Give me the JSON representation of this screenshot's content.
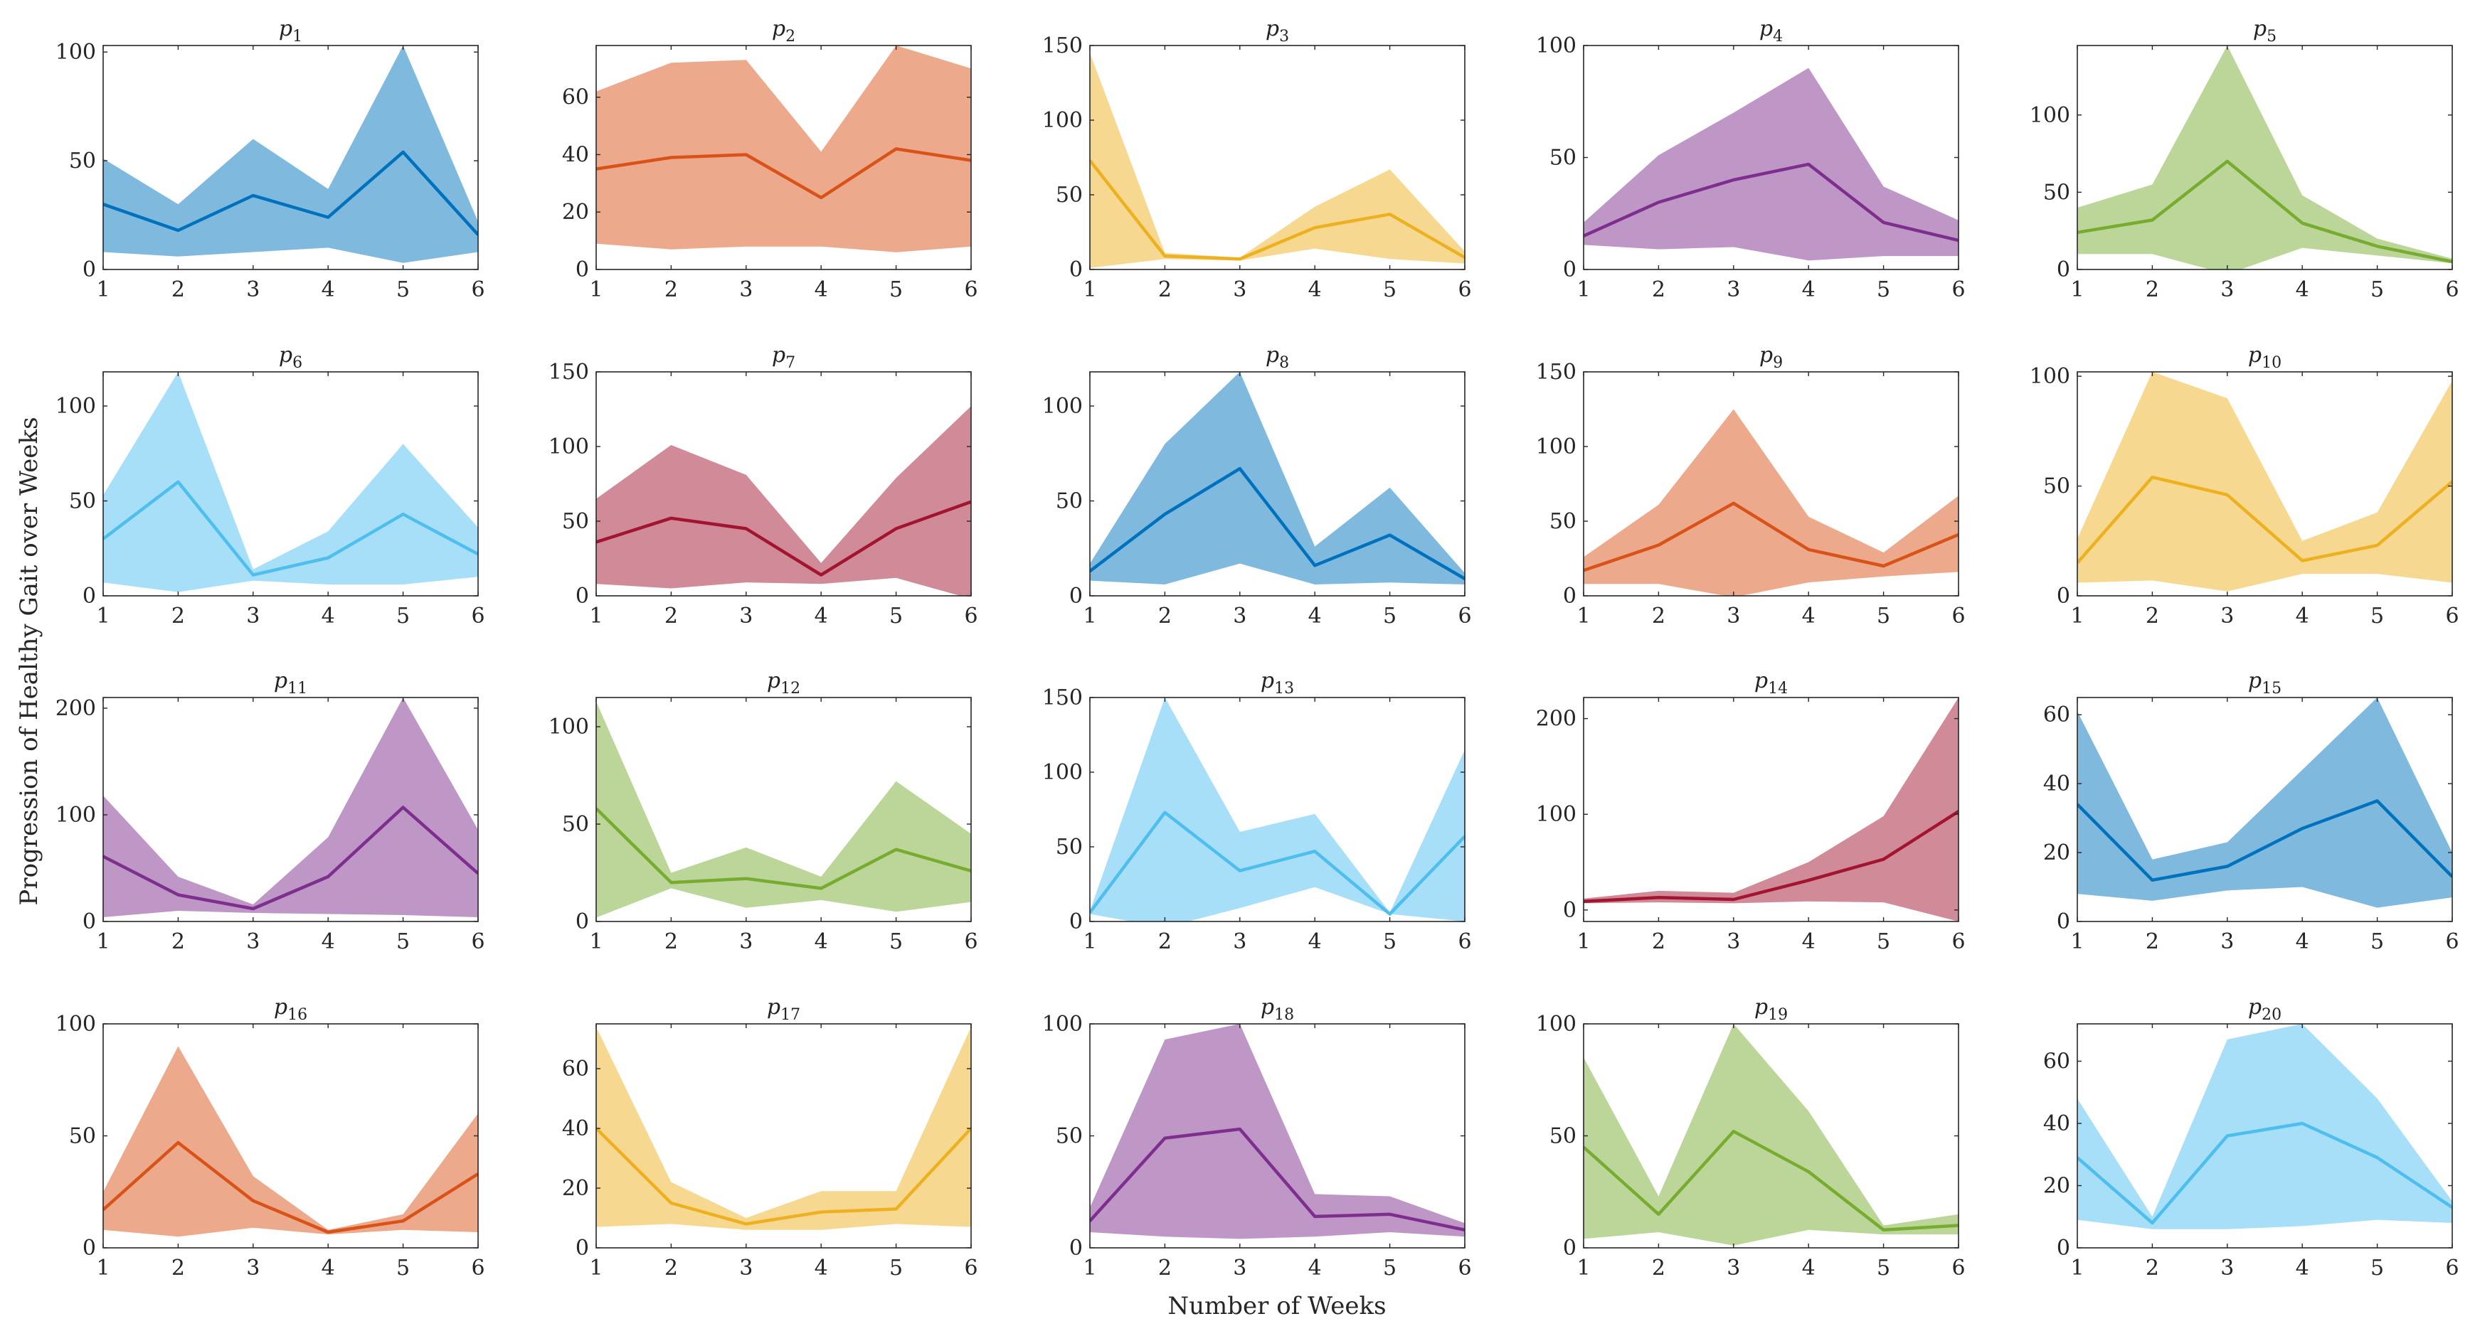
{
  "figure": {
    "ylabel": "Progression of Healthy Gait over Weeks",
    "xlabel": "Number of Weeks"
  },
  "chart_data": [
    {
      "type": "area",
      "title": "p1",
      "title_base": "p",
      "title_sub": "1",
      "color": "#0072BD",
      "x": [
        1,
        2,
        3,
        4,
        5,
        6
      ],
      "ylim": [
        0,
        103
      ],
      "yticks": [
        0,
        50,
        100
      ],
      "xticks": [
        1,
        2,
        3,
        4,
        5,
        6
      ],
      "upper": [
        51,
        30,
        60,
        37,
        103,
        22
      ],
      "lower": [
        8,
        6,
        8,
        10,
        3,
        8
      ],
      "mean": [
        30,
        18,
        34,
        24,
        54,
        16
      ]
    },
    {
      "type": "area",
      "title": "p2",
      "title_base": "p",
      "title_sub": "2",
      "color": "#D95319",
      "x": [
        1,
        2,
        3,
        4,
        5,
        6
      ],
      "ylim": [
        0,
        78
      ],
      "yticks": [
        0,
        20,
        40,
        60
      ],
      "xticks": [
        1,
        2,
        3,
        4,
        5,
        6
      ],
      "upper": [
        62,
        72,
        73,
        41,
        78,
        70
      ],
      "lower": [
        9,
        7,
        8,
        8,
        6,
        8
      ],
      "mean": [
        35,
        39,
        40,
        25,
        42,
        38
      ]
    },
    {
      "type": "area",
      "title": "p3",
      "title_base": "p",
      "title_sub": "3",
      "color": "#EDB120",
      "x": [
        1,
        2,
        3,
        4,
        5,
        6
      ],
      "ylim": [
        0,
        150
      ],
      "yticks": [
        0,
        50,
        100,
        150
      ],
      "xticks": [
        1,
        2,
        3,
        4,
        5,
        6
      ],
      "upper": [
        145,
        11,
        8,
        42,
        67,
        12
      ],
      "lower": [
        1,
        7,
        6,
        14,
        7,
        4
      ],
      "mean": [
        73,
        9,
        7,
        28,
        37,
        8
      ]
    },
    {
      "type": "area",
      "title": "p4",
      "title_base": "p",
      "title_sub": "4",
      "color": "#7E2F8E",
      "x": [
        1,
        2,
        3,
        4,
        5,
        6
      ],
      "ylim": [
        0,
        100
      ],
      "yticks": [
        0,
        50,
        100
      ],
      "xticks": [
        1,
        2,
        3,
        4,
        5,
        6
      ],
      "upper": [
        21,
        51,
        70,
        90,
        37,
        22
      ],
      "lower": [
        11,
        9,
        10,
        4,
        6,
        6
      ],
      "mean": [
        15,
        30,
        40,
        47,
        21,
        13
      ]
    },
    {
      "type": "area",
      "title": "p5",
      "title_base": "p",
      "title_sub": "5",
      "color": "#77AC30",
      "x": [
        1,
        2,
        3,
        4,
        5,
        6
      ],
      "ylim": [
        0,
        145
      ],
      "yticks": [
        0,
        50,
        100
      ],
      "xticks": [
        1,
        2,
        3,
        4,
        5,
        6
      ],
      "upper": [
        40,
        55,
        145,
        48,
        20,
        7
      ],
      "lower": [
        10,
        10,
        -3,
        14,
        9,
        4
      ],
      "mean": [
        24,
        32,
        70,
        30,
        15,
        5
      ]
    },
    {
      "type": "area",
      "title": "p6",
      "title_base": "p",
      "title_sub": "6",
      "color": "#4DBEEE",
      "x": [
        1,
        2,
        3,
        4,
        5,
        6
      ],
      "ylim": [
        0,
        118
      ],
      "yticks": [
        0,
        50,
        100
      ],
      "xticks": [
        1,
        2,
        3,
        4,
        5,
        6
      ],
      "upper": [
        53,
        118,
        14,
        34,
        80,
        36
      ],
      "lower": [
        7,
        2,
        8,
        6,
        6,
        10
      ],
      "mean": [
        30,
        60,
        11,
        20,
        43,
        22
      ]
    },
    {
      "type": "area",
      "title": "p7",
      "title_base": "p",
      "title_sub": "7",
      "color": "#A2142F",
      "x": [
        1,
        2,
        3,
        4,
        5,
        6
      ],
      "ylim": [
        0,
        150
      ],
      "yticks": [
        0,
        50,
        100,
        150
      ],
      "xticks": [
        1,
        2,
        3,
        4,
        5,
        6
      ],
      "upper": [
        65,
        101,
        81,
        22,
        79,
        127
      ],
      "lower": [
        8,
        5,
        9,
        8,
        12,
        -2
      ],
      "mean": [
        36,
        52,
        45,
        14,
        45,
        63
      ]
    },
    {
      "type": "area",
      "title": "p8",
      "title_base": "p",
      "title_sub": "8",
      "color": "#0072BD",
      "x": [
        1,
        2,
        3,
        4,
        5,
        6
      ],
      "ylim": [
        0,
        118
      ],
      "yticks": [
        0,
        50,
        100
      ],
      "xticks": [
        1,
        2,
        3,
        4,
        5,
        6
      ],
      "upper": [
        17,
        80,
        118,
        26,
        57,
        12
      ],
      "lower": [
        8,
        6,
        17,
        6,
        7,
        6
      ],
      "mean": [
        13,
        43,
        67,
        16,
        32,
        9
      ]
    },
    {
      "type": "area",
      "title": "p9",
      "title_base": "p",
      "title_sub": "9",
      "color": "#D95319",
      "x": [
        1,
        2,
        3,
        4,
        5,
        6
      ],
      "ylim": [
        0,
        150
      ],
      "yticks": [
        0,
        50,
        100,
        150
      ],
      "xticks": [
        1,
        2,
        3,
        4,
        5,
        6
      ],
      "upper": [
        26,
        61,
        125,
        53,
        29,
        67
      ],
      "lower": [
        8,
        8,
        -1,
        9,
        13,
        16
      ],
      "mean": [
        17,
        34,
        62,
        31,
        20,
        41
      ]
    },
    {
      "type": "area",
      "title": "p10",
      "title_base": "p",
      "title_sub": "10",
      "color": "#EDB120",
      "x": [
        1,
        2,
        3,
        4,
        5,
        6
      ],
      "ylim": [
        0,
        102
      ],
      "yticks": [
        0,
        50,
        100
      ],
      "xticks": [
        1,
        2,
        3,
        4,
        5,
        6
      ],
      "upper": [
        26,
        102,
        90,
        25,
        38,
        98
      ],
      "lower": [
        6,
        7,
        2,
        10,
        10,
        6
      ],
      "mean": [
        15,
        54,
        46,
        16,
        23,
        52
      ]
    },
    {
      "type": "area",
      "title": "p11",
      "title_base": "p",
      "title_sub": "11",
      "color": "#7E2F8E",
      "x": [
        1,
        2,
        3,
        4,
        5,
        6
      ],
      "ylim": [
        0,
        210
      ],
      "yticks": [
        0,
        100,
        200
      ],
      "xticks": [
        1,
        2,
        3,
        4,
        5,
        6
      ],
      "upper": [
        118,
        42,
        16,
        79,
        210,
        86
      ],
      "lower": [
        4,
        10,
        8,
        7,
        6,
        4
      ],
      "mean": [
        61,
        25,
        12,
        42,
        107,
        45
      ]
    },
    {
      "type": "area",
      "title": "p12",
      "title_base": "p",
      "title_sub": "12",
      "color": "#77AC30",
      "x": [
        1,
        2,
        3,
        4,
        5,
        6
      ],
      "ylim": [
        0,
        115
      ],
      "yticks": [
        0,
        50,
        100
      ],
      "xticks": [
        1,
        2,
        3,
        4,
        5,
        6
      ],
      "upper": [
        113,
        25,
        38,
        23,
        72,
        45
      ],
      "lower": [
        2,
        17,
        7,
        11,
        5,
        10
      ],
      "mean": [
        58,
        20,
        22,
        17,
        37,
        26
      ]
    },
    {
      "type": "area",
      "title": "p13",
      "title_base": "p",
      "title_sub": "13",
      "color": "#4DBEEE",
      "x": [
        1,
        2,
        3,
        4,
        5,
        6
      ],
      "ylim": [
        0,
        150
      ],
      "yticks": [
        0,
        50,
        100,
        150
      ],
      "xticks": [
        1,
        2,
        3,
        4,
        5,
        6
      ],
      "upper": [
        7,
        150,
        60,
        72,
        6,
        115
      ],
      "lower": [
        5,
        -4,
        9,
        23,
        5,
        0
      ],
      "mean": [
        6,
        73,
        34,
        47,
        5,
        57
      ]
    },
    {
      "type": "area",
      "title": "p14",
      "title_base": "p",
      "title_sub": "14",
      "color": "#A2142F",
      "x": [
        1,
        2,
        3,
        4,
        5,
        6
      ],
      "ylim": [
        -12,
        222
      ],
      "yticks": [
        0,
        100,
        200
      ],
      "xticks": [
        1,
        2,
        3,
        4,
        5,
        6
      ],
      "upper": [
        12,
        20,
        18,
        50,
        98,
        222
      ],
      "lower": [
        7,
        8,
        7,
        9,
        8,
        -12
      ],
      "mean": [
        9,
        13,
        11,
        31,
        53,
        103
      ]
    },
    {
      "type": "area",
      "title": "p15",
      "title_base": "p",
      "title_sub": "15",
      "color": "#0072BD",
      "x": [
        1,
        2,
        3,
        4,
        5,
        6
      ],
      "ylim": [
        0,
        65
      ],
      "yticks": [
        0,
        20,
        40,
        60
      ],
      "xticks": [
        1,
        2,
        3,
        4,
        5,
        6
      ],
      "upper": [
        61,
        18,
        23,
        44,
        65,
        20
      ],
      "lower": [
        8,
        6,
        9,
        10,
        4,
        7
      ],
      "mean": [
        34,
        12,
        16,
        27,
        35,
        13
      ]
    },
    {
      "type": "area",
      "title": "p16",
      "title_base": "p",
      "title_sub": "16",
      "color": "#D95319",
      "x": [
        1,
        2,
        3,
        4,
        5,
        6
      ],
      "ylim": [
        0,
        100
      ],
      "yticks": [
        0,
        50,
        100
      ],
      "xticks": [
        1,
        2,
        3,
        4,
        5,
        6
      ],
      "upper": [
        25,
        90,
        32,
        8,
        15,
        60
      ],
      "lower": [
        8,
        5,
        9,
        6,
        8,
        7
      ],
      "mean": [
        17,
        47,
        21,
        7,
        12,
        33
      ]
    },
    {
      "type": "area",
      "title": "p17",
      "title_base": "p",
      "title_sub": "17",
      "color": "#EDB120",
      "x": [
        1,
        2,
        3,
        4,
        5,
        6
      ],
      "ylim": [
        0,
        75
      ],
      "yticks": [
        0,
        20,
        40,
        60
      ],
      "xticks": [
        1,
        2,
        3,
        4,
        5,
        6
      ],
      "upper": [
        74,
        22,
        10,
        19,
        19,
        74
      ],
      "lower": [
        7,
        8,
        6,
        6,
        8,
        7
      ],
      "mean": [
        40,
        15,
        8,
        12,
        13,
        40
      ]
    },
    {
      "type": "area",
      "title": "p18",
      "title_base": "p",
      "title_sub": "18",
      "color": "#7E2F8E",
      "x": [
        1,
        2,
        3,
        4,
        5,
        6
      ],
      "ylim": [
        0,
        100
      ],
      "yticks": [
        0,
        50,
        100
      ],
      "xticks": [
        1,
        2,
        3,
        4,
        5,
        6
      ],
      "upper": [
        18,
        93,
        100,
        24,
        23,
        11
      ],
      "lower": [
        7,
        5,
        4,
        5,
        7,
        5
      ],
      "mean": [
        12,
        49,
        53,
        14,
        15,
        8
      ]
    },
    {
      "type": "area",
      "title": "p19",
      "title_base": "p",
      "title_sub": "19",
      "color": "#77AC30",
      "x": [
        1,
        2,
        3,
        4,
        5,
        6
      ],
      "ylim": [
        0,
        100
      ],
      "yticks": [
        0,
        50,
        100
      ],
      "xticks": [
        1,
        2,
        3,
        4,
        5,
        6
      ],
      "upper": [
        85,
        23,
        100,
        61,
        10,
        15
      ],
      "lower": [
        4,
        7,
        1,
        8,
        6,
        6
      ],
      "mean": [
        45,
        15,
        52,
        34,
        8,
        10
      ]
    },
    {
      "type": "area",
      "title": "p20",
      "title_base": "p",
      "title_sub": "20",
      "color": "#4DBEEE",
      "x": [
        1,
        2,
        3,
        4,
        5,
        6
      ],
      "ylim": [
        0,
        72
      ],
      "yticks": [
        0,
        20,
        40,
        60
      ],
      "xticks": [
        1,
        2,
        3,
        4,
        5,
        6
      ],
      "upper": [
        48,
        10,
        67,
        72,
        48,
        15
      ],
      "lower": [
        9,
        6,
        6,
        7,
        9,
        8
      ],
      "mean": [
        29,
        8,
        36,
        40,
        29,
        13
      ]
    }
  ]
}
